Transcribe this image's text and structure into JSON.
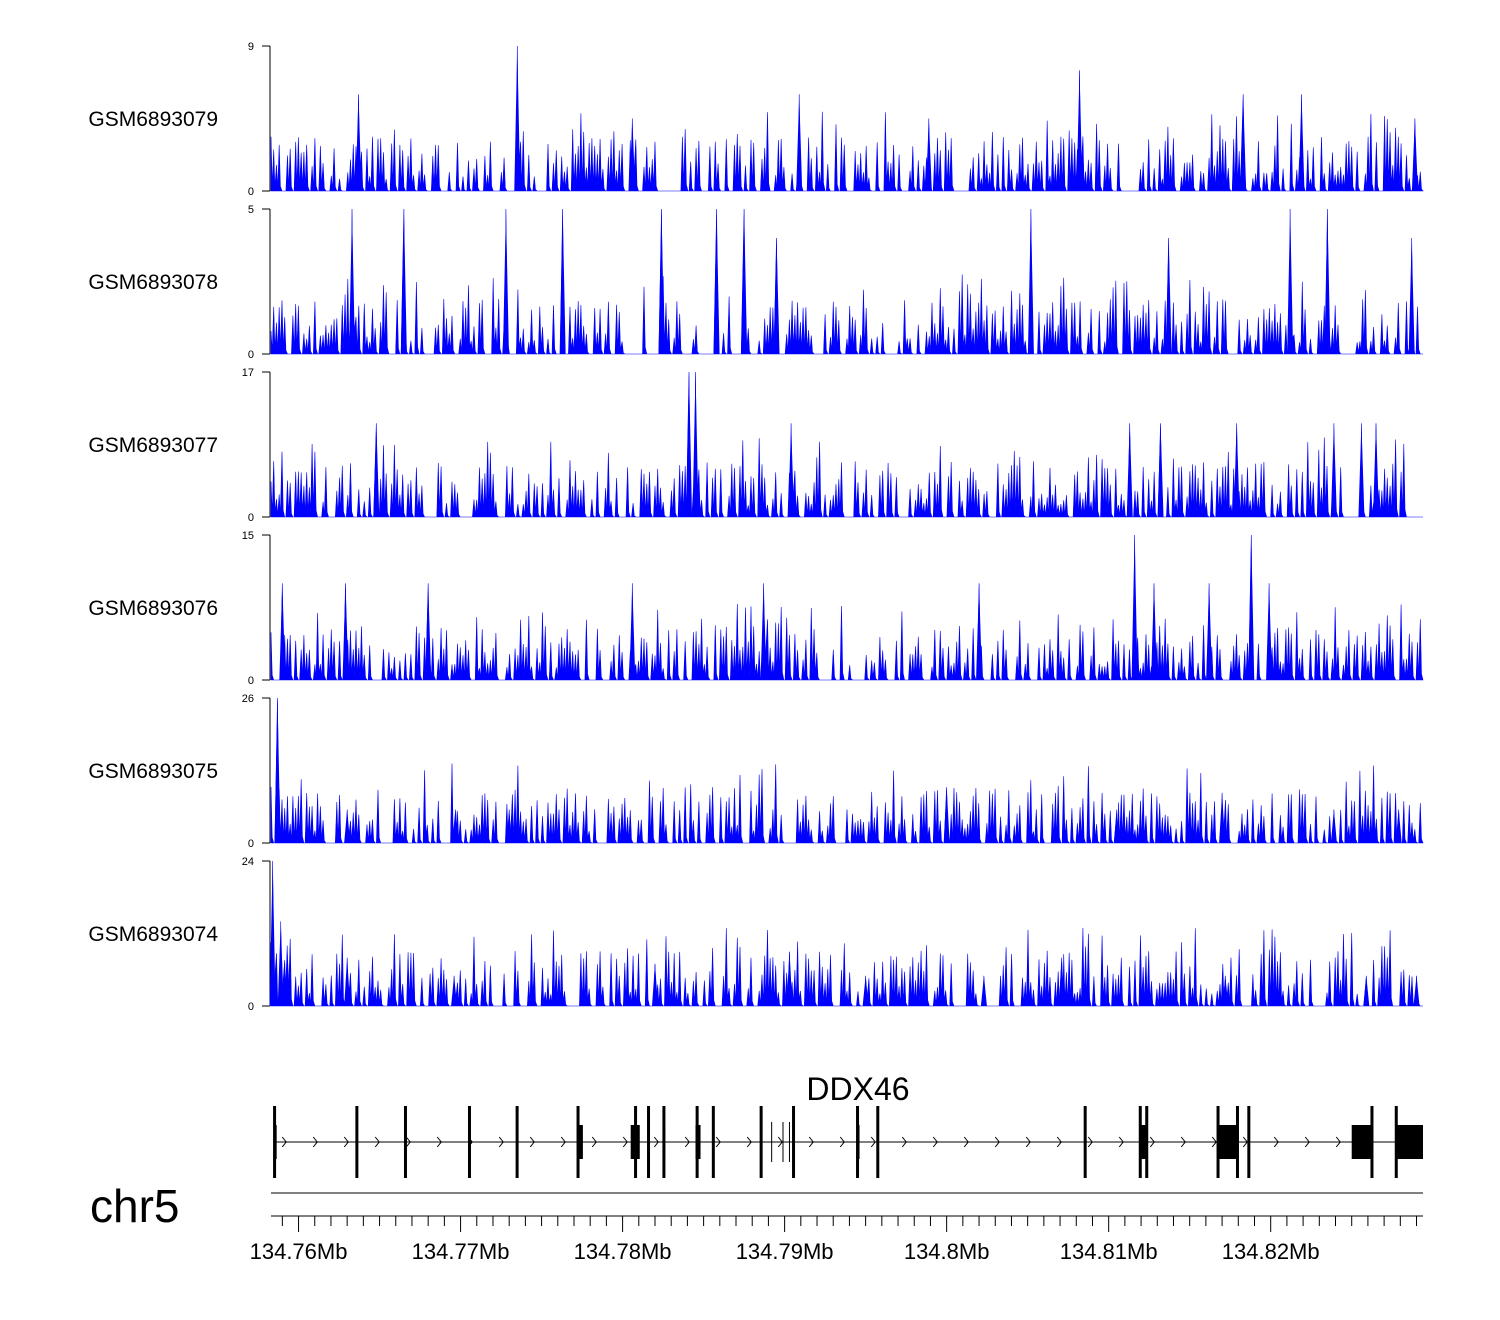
{
  "chart_data": {
    "type": "area",
    "title": "",
    "fill_color": "#0000ff",
    "line_color": "#000000",
    "chromosome": "chr5",
    "gene_name": "DDX46",
    "strand": "+",
    "x_range_mb": [
      134.7583,
      134.8294
    ],
    "x_ticks": [
      {
        "pos": 134.76,
        "label": "134.76Mb"
      },
      {
        "pos": 134.77,
        "label": "134.77Mb"
      },
      {
        "pos": 134.78,
        "label": "134.78Mb"
      },
      {
        "pos": 134.79,
        "label": "134.79Mb"
      },
      {
        "pos": 134.8,
        "label": "134.8Mb"
      },
      {
        "pos": 134.81,
        "label": "134.81Mb"
      },
      {
        "pos": 134.82,
        "label": "134.82Mb"
      }
    ],
    "tracks": [
      {
        "name": "GSM6893079",
        "ymax": 9,
        "ymin": 0,
        "peaks": [
          [
            134.7637,
            6
          ],
          [
            134.7735,
            9
          ],
          [
            134.7806,
            4.5
          ],
          [
            134.7909,
            6
          ],
          [
            134.7989,
            4.5
          ],
          [
            134.8082,
            7.5
          ],
          [
            134.8183,
            6
          ],
          [
            134.8219,
            6
          ],
          [
            134.8289,
            4.5
          ]
        ],
        "gaps": [
          [
            134.7822,
            134.7834
          ],
          [
            134.8004,
            134.8014
          ]
        ]
      },
      {
        "name": "GSM6893078",
        "ymax": 5,
        "ymin": 0,
        "peaks": [
          [
            134.7633,
            5
          ],
          [
            134.7665,
            5
          ],
          [
            134.7728,
            5
          ],
          [
            134.7763,
            5
          ],
          [
            134.7824,
            5
          ],
          [
            134.7858,
            5
          ],
          [
            134.7875,
            5
          ],
          [
            134.7895,
            4
          ],
          [
            134.8052,
            5
          ],
          [
            134.8137,
            4
          ],
          [
            134.8212,
            5
          ],
          [
            134.8235,
            5
          ],
          [
            134.8287,
            4
          ]
        ],
        "gaps": [
          [
            134.78,
            134.7813
          ],
          [
            134.7848,
            134.7859
          ]
        ]
      },
      {
        "name": "GSM6893077",
        "ymax": 17,
        "ymin": 0,
        "peaks": [
          [
            134.7648,
            11
          ],
          [
            134.7841,
            17
          ],
          [
            134.7845,
            17
          ],
          [
            134.7904,
            11
          ],
          [
            134.8113,
            11
          ],
          [
            134.8132,
            11
          ],
          [
            134.8179,
            11
          ],
          [
            134.8239,
            11
          ],
          [
            134.8256,
            11
          ],
          [
            134.8265,
            11
          ]
        ],
        "gaps": []
      },
      {
        "name": "GSM6893076",
        "ymax": 15,
        "ymin": 0,
        "peaks": [
          [
            134.759,
            10
          ],
          [
            134.7629,
            10
          ],
          [
            134.768,
            10
          ],
          [
            134.7806,
            10
          ],
          [
            134.7887,
            10
          ],
          [
            134.802,
            10
          ],
          [
            134.8116,
            15
          ],
          [
            134.8128,
            10
          ],
          [
            134.8162,
            10
          ],
          [
            134.8188,
            15
          ],
          [
            134.8199,
            10
          ]
        ],
        "gaps": []
      },
      {
        "name": "GSM6893075",
        "ymax": 26,
        "ymin": 0,
        "peaks": [
          [
            134.7587,
            26
          ],
          [
            134.763,
            6
          ],
          [
            134.7697,
            6
          ],
          [
            134.773,
            6
          ],
          [
            134.8,
            10
          ],
          [
            134.8105,
            6
          ],
          [
            134.817,
            9
          ],
          [
            134.8239,
            6
          ],
          [
            134.8279,
            6
          ]
        ],
        "gaps": []
      },
      {
        "name": "GSM6893074",
        "ymax": 24,
        "ymin": 0,
        "peaks": [
          [
            134.7584,
            24
          ],
          [
            134.7589,
            14
          ],
          [
            134.7593,
            10
          ],
          [
            134.763,
            8
          ],
          [
            134.7696,
            5
          ],
          [
            134.782,
            7
          ],
          [
            134.7903,
            9
          ],
          [
            134.795,
            5
          ],
          [
            134.8023,
            5
          ],
          [
            134.8071,
            8
          ],
          [
            134.8172,
            5
          ],
          [
            134.8259,
            5
          ],
          [
            134.829,
            5
          ]
        ],
        "gaps": []
      }
    ],
    "gene_model": {
      "exons": [
        [
          134.7585,
          134.75865
        ],
        [
          134.76354,
          134.76365
        ],
        [
          134.76654,
          134.76665
        ],
        [
          134.7705,
          134.77061
        ],
        [
          134.77344,
          134.77355
        ],
        [
          134.77722,
          134.77755
        ],
        [
          134.7805,
          134.78106
        ],
        [
          134.78154,
          134.78165
        ],
        [
          134.7825,
          134.78261
        ],
        [
          134.7845,
          134.78481
        ],
        [
          134.78554,
          134.78565
        ],
        [
          134.7885,
          134.78861
        ],
        [
          134.7905,
          134.79061
        ],
        [
          134.7945,
          134.79461
        ],
        [
          134.7957,
          134.79581
        ],
        [
          134.8085,
          134.80861
        ],
        [
          134.8119,
          134.8124
        ],
        [
          134.8167,
          134.818
        ],
        [
          134.8186,
          134.81871
        ],
        [
          134.825,
          134.8262
        ],
        [
          134.8278,
          134.8294
        ]
      ],
      "tall_marks": [
        134.75852,
        134.7636,
        134.7666,
        134.77055,
        134.77349,
        134.77725,
        134.7808,
        134.7816,
        134.78255,
        134.7846,
        134.7856,
        134.78855,
        134.79055,
        134.7945,
        134.79575,
        134.80855,
        134.81195,
        134.81235,
        134.81675,
        134.81795,
        134.81865,
        134.82625,
        134.82775
      ],
      "thin_marks": [
        134.7892,
        134.7899,
        134.7903
      ]
    }
  }
}
